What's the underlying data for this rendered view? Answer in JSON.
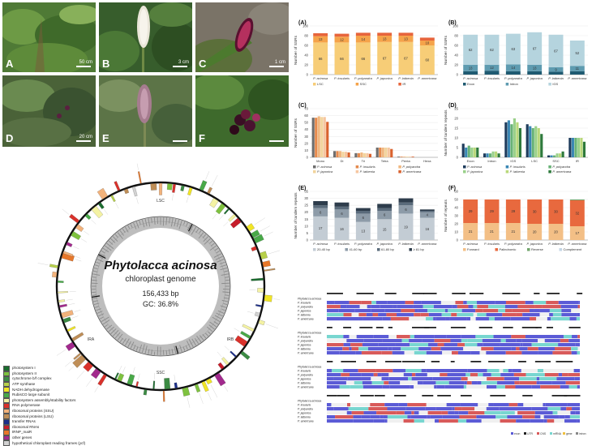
{
  "photos": [
    {
      "label": "A",
      "scale": "50 cm",
      "bg": "#4f7a36"
    },
    {
      "label": "B",
      "scale": "3 cm",
      "bg": "#375d2c"
    },
    {
      "label": "C",
      "scale": "1 cm",
      "bg": "#7a7367"
    },
    {
      "label": "D",
      "scale": "20 cm",
      "bg": "#4a6238"
    },
    {
      "label": "E",
      "scale": "",
      "bg": "#5c7447"
    },
    {
      "label": "F",
      "scale": "",
      "bg": "#3e6a2c"
    }
  ],
  "species": [
    "P. acinosa",
    "P. insularis",
    "P. polyandra",
    "P. japonica",
    "P. latbenia",
    "P. americana"
  ],
  "chart_data": [
    {
      "panel": "(A)",
      "type": "bar",
      "stacked": true,
      "ylabel": "Number of SSRs",
      "ylim": [
        0,
        100
      ],
      "yticks": [
        "0",
        "20",
        "40",
        "60",
        "80",
        "100"
      ],
      "categories": [
        "P. acinosa",
        "P. insularis",
        "P. polyandra",
        "P. japonica",
        "P. latbenia",
        "P. americana"
      ],
      "series": [
        {
          "name": "LSC",
          "color": "#f7cd77",
          "values": [
            66,
            66,
            66,
            67,
            67,
            60
          ]
        },
        {
          "name": "SSC",
          "color": "#f5a34a",
          "values": [
            13,
            12,
            14,
            13,
            13,
            10
          ]
        },
        {
          "name": "IR",
          "color": "#e7643b",
          "values": [
            6,
            6,
            6,
            6,
            6,
            6
          ]
        }
      ],
      "labels": [
        [
          "66",
          "13",
          "6"
        ],
        [
          "66",
          "12",
          "6"
        ],
        [
          "66",
          "14",
          "6"
        ],
        [
          "67",
          "13",
          "6"
        ],
        [
          "67",
          "13",
          "6"
        ],
        [
          "60",
          "10",
          "6"
        ]
      ],
      "legend": "bottom"
    },
    {
      "panel": "(B)",
      "type": "bar",
      "stacked": true,
      "ylabel": "Number of SSRs",
      "ylim": [
        0,
        100
      ],
      "yticks": [
        "0",
        "20",
        "40",
        "60",
        "80",
        "100"
      ],
      "categories": [
        "P. acinosa",
        "P. insularis",
        "P. polyandra",
        "P. japonica",
        "P. latbenia",
        "P. americana"
      ],
      "series": [
        {
          "name": "Exon",
          "color": "#1f5a71",
          "values": [
            7,
            8,
            7,
            7,
            6,
            7
          ]
        },
        {
          "name": "Intron",
          "color": "#5e9bb0",
          "values": [
            13,
            12,
            14,
            13,
            9,
            11
          ]
        },
        {
          "name": "IGS",
          "color": "#b5d4de",
          "values": [
            62,
            62,
            63,
            67,
            67,
            52
          ]
        }
      ],
      "labels": [
        [
          "",
          "13",
          "62"
        ],
        [
          "",
          "12",
          "62"
        ],
        [
          "",
          "14",
          "63"
        ],
        [
          "",
          "13",
          "67"
        ],
        [
          "",
          "9",
          "67"
        ],
        [
          "",
          "11",
          "52"
        ]
      ],
      "legend": "bottom"
    },
    {
      "panel": "(C)",
      "type": "bar",
      "stacked": false,
      "ylabel": "Number of SSRs",
      "ylim": [
        0,
        70
      ],
      "yticks": [
        "0",
        "10",
        "20",
        "30",
        "40",
        "50",
        "60",
        "70"
      ],
      "categories": [
        "Mono",
        "Di",
        "Tri",
        "Tetra",
        "Penta",
        "Hexa"
      ],
      "series": [
        {
          "name": "P. acinosa",
          "color": "#6e6e6e",
          "values": [
            57,
            9,
            6,
            14,
            1,
            0
          ]
        },
        {
          "name": "P. insularis",
          "color": "#e58a4e",
          "values": [
            57,
            9,
            6,
            14,
            1,
            0
          ]
        },
        {
          "name": "P. polyandra",
          "color": "#f0b77f",
          "values": [
            59,
            9,
            7,
            14,
            1,
            0
          ]
        },
        {
          "name": "P. japonica",
          "color": "#f2d49c",
          "values": [
            58,
            8,
            6,
            14,
            1,
            0
          ]
        },
        {
          "name": "P. latbenia",
          "color": "#f6c6a0",
          "values": [
            58,
            8,
            6,
            14,
            1,
            0
          ]
        },
        {
          "name": "P. americana",
          "color": "#d9622e",
          "values": [
            51,
            7,
            5,
            12,
            1,
            0
          ]
        }
      ],
      "legend": "bottom"
    },
    {
      "panel": "(D)",
      "type": "bar",
      "stacked": false,
      "ylabel": "Number of tandem repeats",
      "ylim": [
        0,
        25
      ],
      "yticks": [
        "0",
        "5",
        "10",
        "15",
        "20",
        "25"
      ],
      "categories": [
        "Exon",
        "Intron",
        "IGS",
        "LSC",
        "SSC",
        "IR"
      ],
      "series": [
        {
          "name": "P. acinosa",
          "color": "#1f3c5c",
          "values": [
            7,
            2,
            18,
            17,
            1,
            10
          ]
        },
        {
          "name": "P. insularis",
          "color": "#3a87b4",
          "values": [
            5,
            2,
            19,
            16,
            1,
            10
          ]
        },
        {
          "name": "P. polyandra",
          "color": "#68b276",
          "values": [
            6,
            2,
            17,
            15,
            1,
            10
          ]
        },
        {
          "name": "P. japonica",
          "color": "#9ad18a",
          "values": [
            5,
            3,
            20,
            16,
            2,
            10
          ]
        },
        {
          "name": "P. latbenia",
          "color": "#b9d87a",
          "values": [
            5,
            3,
            18,
            15,
            2,
            10
          ]
        },
        {
          "name": "P. americana",
          "color": "#2e7a3c",
          "values": [
            5,
            2,
            15,
            12,
            3,
            8
          ]
        }
      ],
      "legend": "bottom"
    },
    {
      "panel": "(E)",
      "type": "bar",
      "stacked": true,
      "ylabel": "Number of tandem repeats",
      "ylim": [
        0,
        35
      ],
      "yticks": [
        "0",
        "5",
        "10",
        "15",
        "20",
        "25",
        "30",
        "35"
      ],
      "categories": [
        "P. acinosa",
        "P. insularis",
        "P. polyandra",
        "P. japonica",
        "P. latbenia",
        "P. americana"
      ],
      "series": [
        {
          "name": "20-40 bp",
          "color": "#c3ccd4",
          "values": [
            17,
            16,
            13,
            15,
            19,
            16
          ]
        },
        {
          "name": "41-60 bp",
          "color": "#8d9ba8",
          "values": [
            6,
            6,
            6,
            6,
            6,
            4
          ]
        },
        {
          "name": "61-80 bp",
          "color": "#5a6b7b",
          "values": [
            2,
            2,
            2,
            2,
            2,
            1
          ]
        },
        {
          "name": "≥ 81 bp",
          "color": "#2e3d4c",
          "values": [
            3,
            3,
            2,
            3,
            3,
            1
          ]
        }
      ],
      "labels": [
        [
          "17",
          "6",
          "",
          ""
        ],
        [
          "16",
          "6",
          "",
          ""
        ],
        [
          "13",
          "6",
          "",
          ""
        ],
        [
          "15",
          "6",
          "",
          ""
        ],
        [
          "19",
          "6",
          "",
          ""
        ],
        [
          "16",
          "4",
          "",
          ""
        ]
      ],
      "legend": "bottom"
    },
    {
      "panel": "(F)",
      "type": "bar",
      "stacked": true,
      "ylabel": "Number of repeats",
      "ylim": [
        0,
        60
      ],
      "yticks": [
        "0",
        "10",
        "20",
        "30",
        "40",
        "50",
        "60"
      ],
      "categories": [
        "P. acinosa",
        "P. insularis",
        "P. polyandra",
        "P. japonica",
        "P. latbenia",
        "P. americana"
      ],
      "series": [
        {
          "name": "Forward",
          "color": "#f3bf86",
          "values": [
            21,
            21,
            21,
            20,
            20,
            17
          ]
        },
        {
          "name": "Palindromic",
          "color": "#e8693e",
          "values": [
            29,
            29,
            29,
            30,
            30,
            32
          ]
        },
        {
          "name": "Reverse",
          "color": "#72a56b",
          "values": [
            0,
            0,
            0,
            0,
            0,
            1
          ]
        },
        {
          "name": "Complement",
          "color": "#c3d6e6",
          "values": [
            0,
            0,
            0,
            0,
            0,
            0
          ]
        }
      ],
      "labels": [
        [
          "21",
          "29",
          "",
          ""
        ],
        [
          "21",
          "29",
          "",
          ""
        ],
        [
          "21",
          "29",
          "",
          ""
        ],
        [
          "20",
          "30",
          "",
          ""
        ],
        [
          "20",
          "30",
          "",
          ""
        ],
        [
          "17",
          "32",
          "",
          ""
        ]
      ],
      "legend": "bottom"
    }
  ],
  "map": {
    "title": "Phytolacca acinosa",
    "subtitle": "chloroplast genome",
    "size": "156,433 bp",
    "gc": "GC: 36.8%",
    "lsc": "LSC",
    "ssc": "SSC",
    "ira": "IRA",
    "irb": "IRB"
  },
  "legend": [
    {
      "label": "photosystem I",
      "color": "#1b6d2f"
    },
    {
      "label": "photosystem II",
      "color": "#7ec23f"
    },
    {
      "label": "cytochrome b/f complex",
      "color": "#3c8b44"
    },
    {
      "label": "ATP synthase",
      "color": "#b7d04a"
    },
    {
      "label": "NADH dehydrogenase",
      "color": "#f1e526"
    },
    {
      "label": "RubisCO large subunit",
      "color": "#48a948"
    },
    {
      "label": "photosystem assembly/stability factors",
      "color": "#f4f2a3"
    },
    {
      "label": "RNA polymerase",
      "color": "#d9312b"
    },
    {
      "label": "ribosomal proteins (SSU)",
      "color": "#f2b27b"
    },
    {
      "label": "ribosomal proteins (LSU)",
      "color": "#bf8e57"
    },
    {
      "label": "transfer RNAs",
      "color": "#1c2f8a"
    },
    {
      "label": "ribosomal RNAs",
      "color": "#c61d2a"
    },
    {
      "label": "tRNP_maiR",
      "color": "#e7772a"
    },
    {
      "label": "other genes",
      "color": "#a2298d"
    },
    {
      "label": "hypothetical chloroplast reading frames (ycf)",
      "color": "#d2d2d2"
    }
  ],
  "alignment": {
    "rows": [
      "Phytolacca acinosa",
      "P. insularis",
      "P. polyandra",
      "P. japonica",
      "P. latbenia",
      "P. americana"
    ],
    "legend": [
      "exon",
      "UTR",
      "CNS",
      "mRNA",
      "gene",
      "intron"
    ]
  }
}
